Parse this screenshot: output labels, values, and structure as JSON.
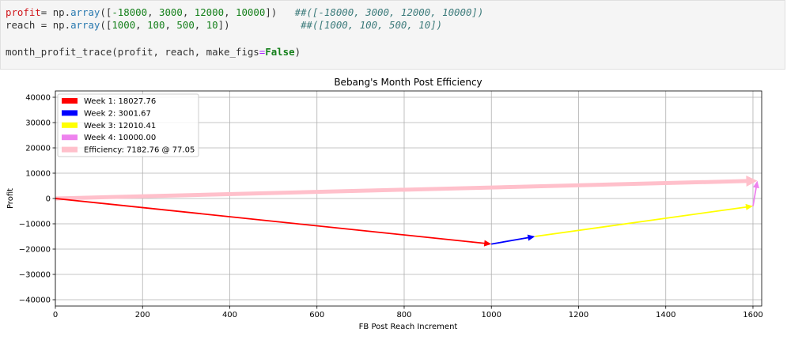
{
  "code": {
    "line1": {
      "var": "profit",
      "assign": "= ",
      "mod": "np",
      "dot": ".",
      "fn": "array",
      "open": "([",
      "v1": "-18000",
      "sep1": ", ",
      "v2": "3000",
      "sep2": ", ",
      "v3": "12000",
      "sep3": ", ",
      "v4": "10000",
      "close": "])",
      "pad": "   ",
      "comment": "##([-18000, 3000, 12000, 10000])"
    },
    "line2": {
      "var": "reach",
      "assign": " = ",
      "mod": "np",
      "dot": ".",
      "fn": "array",
      "open": "([",
      "v1": "1000",
      "sep1": ", ",
      "v2": "100",
      "sep2": ", ",
      "v3": "500",
      "sep3": ", ",
      "v4": "10",
      "close": "])",
      "pad": "            ",
      "comment": "##([1000, 100, 500, 10])"
    },
    "line3": {
      "call": "month_profit_trace(profit, reach, make_figs",
      "eq": "=",
      "kw": "False",
      "end": ")"
    }
  },
  "chart_data": {
    "type": "line",
    "title": "Bebang's Month Post Efficiency",
    "xlabel": "FB Post Reach Increment",
    "ylabel": "Profit",
    "xlim": [
      0,
      1620
    ],
    "ylim": [
      -42500,
      42500
    ],
    "xticks": [
      0,
      200,
      400,
      600,
      800,
      1000,
      1200,
      1400,
      1600
    ],
    "yticks": [
      -40000,
      -30000,
      -20000,
      -10000,
      0,
      10000,
      20000,
      30000,
      40000
    ],
    "grid": true,
    "legend_position": "upper-left",
    "series": [
      {
        "name": "Week 1: 18027.76",
        "color": "#ff0000",
        "x": [
          0,
          1000
        ],
        "y": [
          0,
          -18000
        ]
      },
      {
        "name": "Week 2: 3001.67",
        "color": "#0000ff",
        "x": [
          1000,
          1100
        ],
        "y": [
          -18000,
          -15000
        ]
      },
      {
        "name": "Week 3: 12010.41",
        "color": "#ffff00",
        "x": [
          1100,
          1600
        ],
        "y": [
          -15000,
          -3000
        ]
      },
      {
        "name": "Week 4: 10000.00",
        "color": "#ee82ee",
        "x": [
          1600,
          1610
        ],
        "y": [
          -3000,
          7000
        ]
      },
      {
        "name": "Efficiency: 7182.76 @ 77.05",
        "color": "#ffc0cb",
        "x": [
          0,
          1610
        ],
        "y": [
          0,
          7000
        ]
      }
    ]
  }
}
